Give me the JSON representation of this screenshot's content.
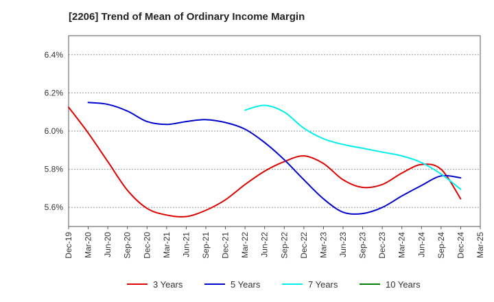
{
  "chart_data": {
    "type": "line",
    "title": "[2206]  Trend of Mean of Ordinary Income Margin",
    "xlabel": "",
    "ylabel": "",
    "x_ticks": [
      "Dec-19",
      "Mar-20",
      "Jun-20",
      "Sep-20",
      "Dec-20",
      "Mar-21",
      "Jun-21",
      "Sep-21",
      "Dec-21",
      "Mar-22",
      "Jun-22",
      "Sep-22",
      "Dec-22",
      "Mar-23",
      "Jun-23",
      "Sep-23",
      "Dec-23",
      "Mar-24",
      "Jun-24",
      "Sep-24",
      "Dec-24",
      "Mar-25"
    ],
    "y_ticks": [
      "5.6%",
      "5.8%",
      "6.0%",
      "6.2%",
      "6.4%"
    ],
    "y_tick_values": [
      5.6,
      5.8,
      6.0,
      6.2,
      6.4
    ],
    "ylim": [
      5.5,
      6.5
    ],
    "grid": true,
    "legend_position": "bottom",
    "series": [
      {
        "name": "3 Years",
        "color": "#dd0000",
        "x": [
          "Dec-19",
          "Mar-20",
          "Jun-20",
          "Sep-20",
          "Dec-20",
          "Mar-21",
          "Jun-21",
          "Sep-21",
          "Dec-21",
          "Mar-22",
          "Jun-22",
          "Sep-22",
          "Dec-22",
          "Mar-23",
          "Jun-23",
          "Sep-23",
          "Dec-23",
          "Mar-24",
          "Jun-24",
          "Sep-24",
          "Dec-24"
        ],
        "values": [
          6.125,
          5.99,
          5.84,
          5.69,
          5.595,
          5.56,
          5.552,
          5.585,
          5.64,
          5.72,
          5.79,
          5.84,
          5.87,
          5.83,
          5.745,
          5.705,
          5.72,
          5.78,
          5.825,
          5.8,
          5.645
        ]
      },
      {
        "name": "5 Years",
        "color": "#0000cc",
        "x": [
          "Mar-20",
          "Jun-20",
          "Sep-20",
          "Dec-20",
          "Mar-21",
          "Jun-21",
          "Sep-21",
          "Dec-21",
          "Mar-22",
          "Jun-22",
          "Sep-22",
          "Dec-22",
          "Mar-23",
          "Jun-23",
          "Sep-23",
          "Dec-23",
          "Mar-24",
          "Jun-24",
          "Sep-24",
          "Dec-24"
        ],
        "values": [
          6.15,
          6.14,
          6.105,
          6.05,
          6.035,
          6.05,
          6.06,
          6.045,
          6.01,
          5.94,
          5.85,
          5.745,
          5.645,
          5.575,
          5.568,
          5.6,
          5.66,
          5.715,
          5.765,
          5.755
        ]
      },
      {
        "name": "7 Years",
        "color": "#00eeee",
        "x": [
          "Mar-22",
          "Jun-22",
          "Sep-22",
          "Dec-22",
          "Mar-23",
          "Jun-23",
          "Sep-23",
          "Dec-23",
          "Mar-24",
          "Jun-24",
          "Sep-24",
          "Dec-24"
        ],
        "values": [
          6.11,
          6.135,
          6.1,
          6.015,
          5.96,
          5.93,
          5.91,
          5.89,
          5.87,
          5.835,
          5.775,
          5.695
        ]
      },
      {
        "name": "10 Years",
        "color": "#008000",
        "x": [],
        "values": []
      }
    ]
  }
}
